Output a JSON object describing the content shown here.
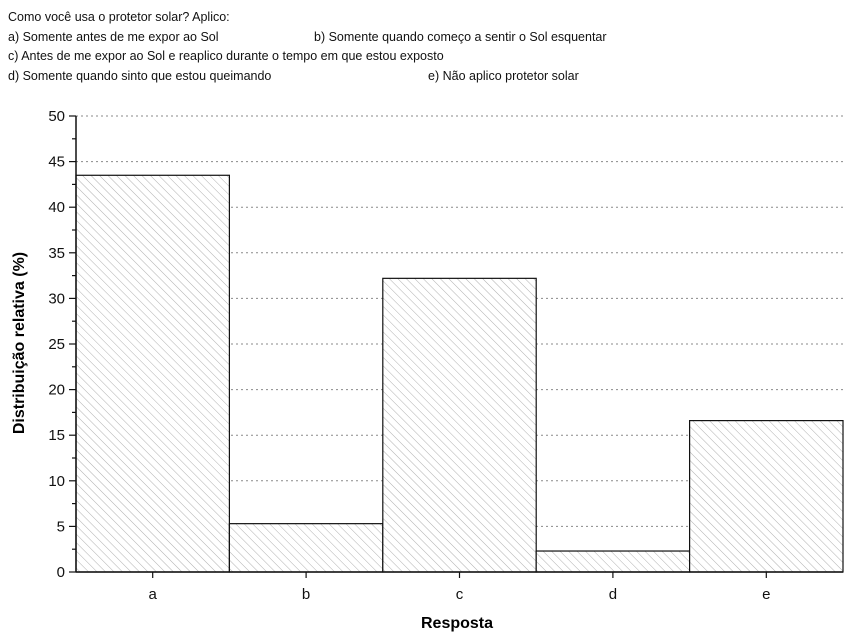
{
  "question": {
    "title": "Como você usa o protetor solar? Aplico:",
    "options": {
      "a": "a) Somente antes de me expor ao Sol",
      "b": "b) Somente quando começo a sentir o Sol esquentar",
      "c": "c) Antes de me expor ao Sol e reaplico durante o tempo em que estou exposto",
      "d": "d) Somente quando sinto que estou queimando",
      "e": "e) Não aplico protetor solar"
    }
  },
  "chart_data": {
    "type": "bar",
    "categories": [
      "a",
      "b",
      "c",
      "d",
      "e"
    ],
    "values": [
      43.5,
      5.3,
      32.2,
      2.3,
      16.6
    ],
    "xlabel": "Resposta",
    "ylabel": "Distribuição relativa (%)",
    "ylim": [
      0,
      50
    ],
    "yticks": [
      0,
      5,
      10,
      15,
      20,
      25,
      30,
      35,
      40,
      45,
      50
    ],
    "grid": "horizontal dotted",
    "bar_fill": "diagonal hatch",
    "colors": {
      "bar_edge": "#111111",
      "hatch": "#b0b0b0",
      "grid": "#8a8a8a"
    }
  }
}
